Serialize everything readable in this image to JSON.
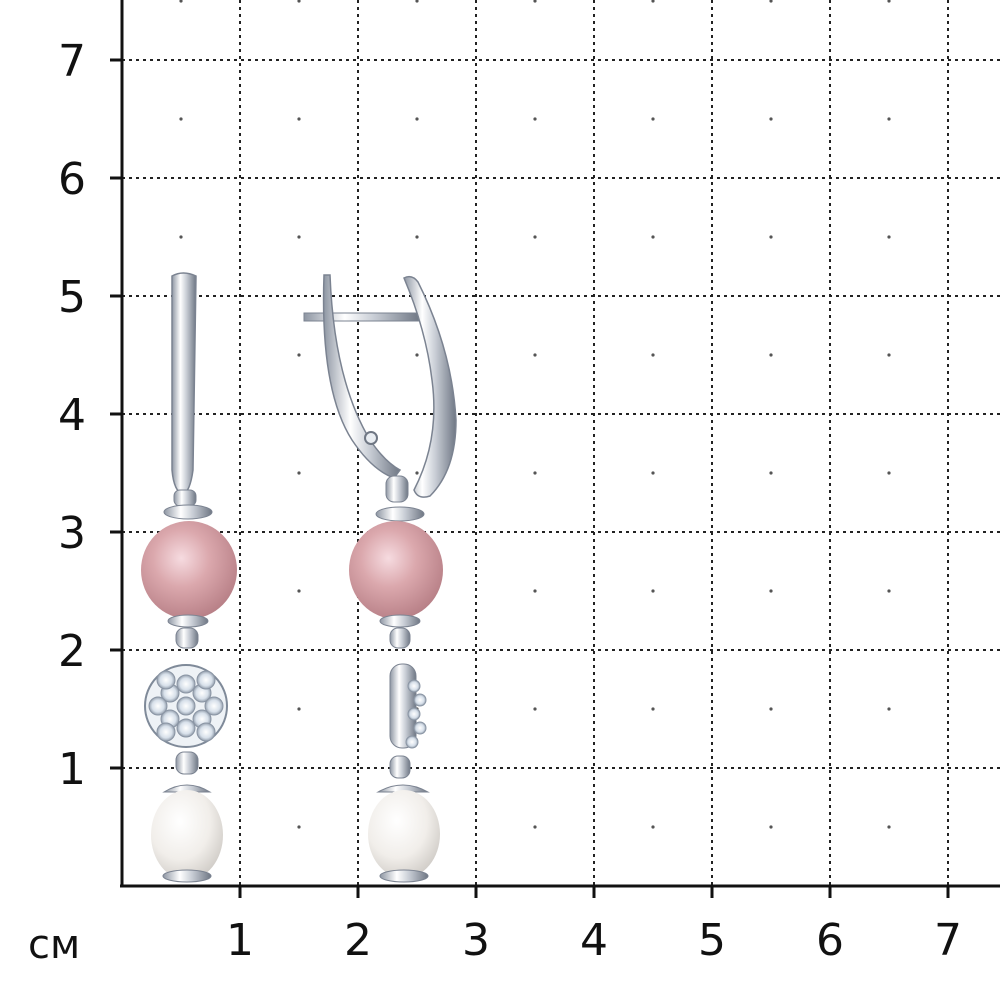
{
  "scale": {
    "unit": "см",
    "x_ticks": [
      "1",
      "2",
      "3",
      "4",
      "5",
      "6",
      "7"
    ],
    "y_ticks": [
      "1",
      "2",
      "3",
      "4",
      "5",
      "6",
      "7"
    ]
  },
  "colors": {
    "grid": "#222222",
    "axis": "#111111",
    "pink_pearl": "#d9a6a8",
    "white_pearl": "#f2efec",
    "silver": "#c9ced6",
    "crystal": "#e3ebf3"
  },
  "items": [
    {
      "name": "earring-front-view"
    },
    {
      "name": "earring-side-view"
    }
  ]
}
